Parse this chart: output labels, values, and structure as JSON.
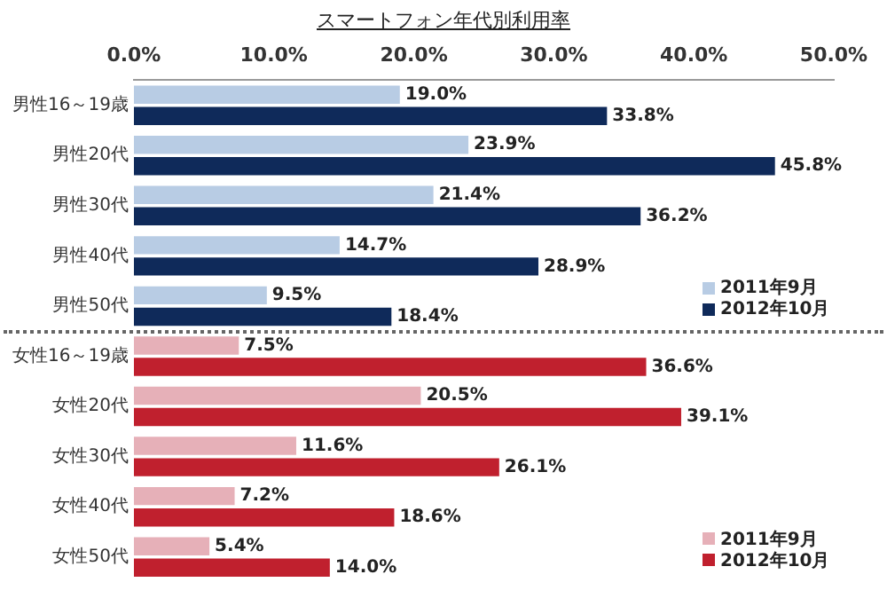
{
  "chart_data": {
    "type": "bar",
    "orientation": "horizontal",
    "title": "スマートフォン年代別利用率",
    "categories": [
      "男性16～19歳",
      "男性20代",
      "男性30代",
      "男性40代",
      "男性50代",
      "女性16～19歳",
      "女性20代",
      "女性30代",
      "女性40代",
      "女性50代"
    ],
    "series": [
      {
        "name": "2011年9月",
        "color": "#b8cce4",
        "values": [
          19.0,
          23.9,
          21.4,
          14.7,
          9.5,
          null,
          null,
          null,
          null,
          null
        ],
        "value_labels": [
          "19.0%",
          "23.9%",
          "21.4%",
          "14.7%",
          "9.5%",
          null,
          null,
          null,
          null,
          null
        ]
      },
      {
        "name": "2012年10月",
        "color": "#0f2a5a",
        "values": [
          33.8,
          45.8,
          36.2,
          28.9,
          18.4,
          null,
          null,
          null,
          null,
          null
        ],
        "value_labels": [
          "33.8%",
          "45.8%",
          "36.2%",
          "28.9%",
          "18.4%",
          null,
          null,
          null,
          null,
          null
        ]
      },
      {
        "name": "2011年9月",
        "color": "#e6b0b8",
        "values": [
          null,
          null,
          null,
          null,
          null,
          7.5,
          20.5,
          11.6,
          7.2,
          5.4
        ],
        "value_labels": [
          null,
          null,
          null,
          null,
          null,
          "7.5%",
          "20.5%",
          "11.6%",
          "7.2%",
          "5.4%"
        ]
      },
      {
        "name": "2012年10月",
        "color": "#c0202e",
        "values": [
          null,
          null,
          null,
          null,
          null,
          36.6,
          39.1,
          26.1,
          18.6,
          14.0
        ],
        "value_labels": [
          null,
          null,
          null,
          null,
          null,
          "36.6%",
          "39.1%",
          "26.1%",
          "18.6%",
          "14.0%"
        ]
      }
    ],
    "xlim": [
      0,
      50
    ],
    "xticks": [
      {
        "value": 0,
        "label": "0.0%"
      },
      {
        "value": 10,
        "label": "10.0%"
      },
      {
        "value": 20,
        "label": "20.0%"
      },
      {
        "value": 30,
        "label": "30.0%"
      },
      {
        "value": 40,
        "label": "40.0%"
      },
      {
        "value": 50,
        "label": "50.0%"
      }
    ],
    "grid": false,
    "legend": "bottom right"
  }
}
